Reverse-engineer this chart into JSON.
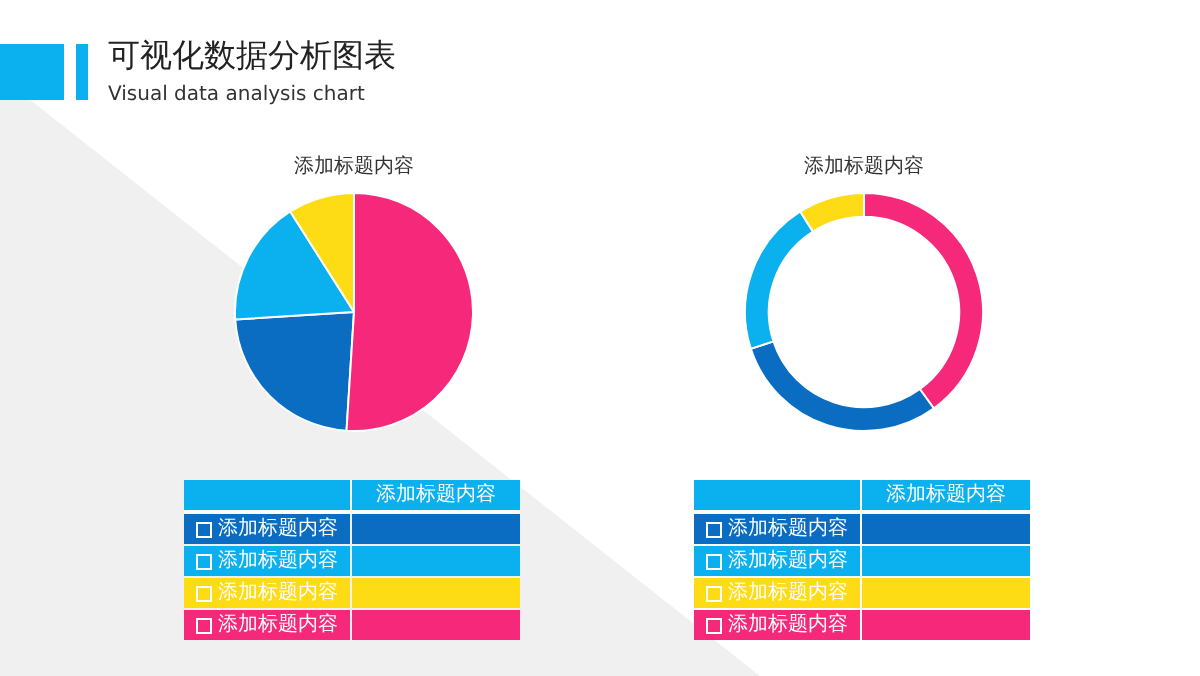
{
  "chart_data": [
    {
      "type": "other",
      "title": "可视化数据分析图表",
      "subtitle": "Visual data analysis chart"
    },
    {
      "type": "pie",
      "title": "添加标题内容",
      "legend_title": "添加标题内容",
      "legend": "bottom",
      "categories": [
        "添加标题内容",
        "添加标题内容",
        "添加标题内容",
        "添加标题内容"
      ],
      "values": [
        23,
        17,
        9,
        51
      ],
      "colors": [
        "#0a6dc2",
        "#0bb0ee",
        "#fddc16",
        "#f5287a"
      ]
    },
    {
      "type": "donut",
      "title": "添加标题内容",
      "legend_title": "添加标题内容",
      "legend": "bottom",
      "categories": [
        "添加标题内容",
        "添加标题内容",
        "添加标题内容",
        "添加标题内容"
      ],
      "values": [
        30,
        21,
        9,
        40
      ],
      "colors": [
        "#0a6dc2",
        "#0bb0ee",
        "#fddc16",
        "#f5287a"
      ]
    }
  ]
}
